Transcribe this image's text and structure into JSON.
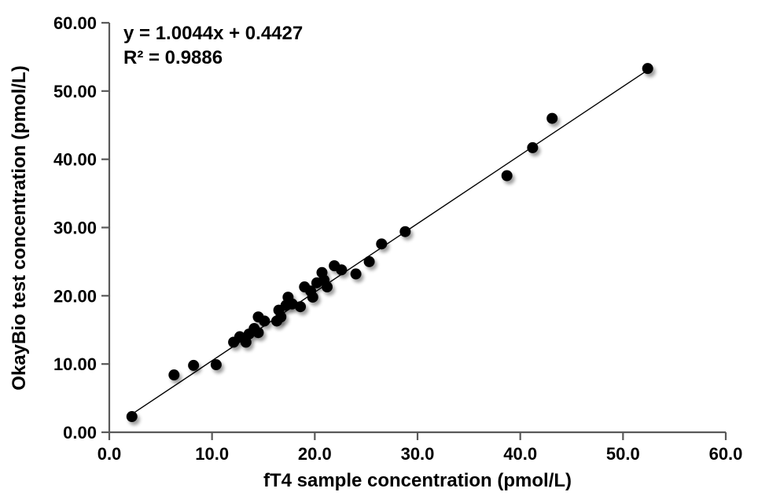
{
  "chart_data": {
    "type": "scatter",
    "title": "",
    "xlabel": "fT4 sample concentration (pmol/L)",
    "ylabel": "OkayBio test concentration (pmol/L)",
    "xlim": [
      0,
      60
    ],
    "ylim": [
      0,
      60
    ],
    "grid": false,
    "legend": false,
    "background_color": "#ffffff",
    "axis_color": "#595959",
    "text_color": "#000000",
    "xticks": [
      {
        "value": 0,
        "label": "0.0"
      },
      {
        "value": 10,
        "label": "10.0"
      },
      {
        "value": 20,
        "label": "20.0"
      },
      {
        "value": 30,
        "label": "30.0"
      },
      {
        "value": 40,
        "label": "40.0"
      },
      {
        "value": 50,
        "label": "50.0"
      },
      {
        "value": 60,
        "label": "60.0"
      }
    ],
    "yticks": [
      {
        "value": 0,
        "label": "0.00"
      },
      {
        "value": 10,
        "label": "10.00"
      },
      {
        "value": 20,
        "label": "20.00"
      },
      {
        "value": 30,
        "label": "30.00"
      },
      {
        "value": 40,
        "label": "40.00"
      },
      {
        "value": 50,
        "label": "50.00"
      },
      {
        "value": 60,
        "label": "60.00"
      }
    ],
    "annotation": {
      "equation": "y = 1.0044x + 0.4427",
      "r_squared": "R² = 0.9886"
    },
    "trendline": {
      "slope": 1.0044,
      "intercept": 0.4427,
      "r2": 0.9886,
      "x_start": 2.2,
      "x_end": 52.4,
      "color": "#000000",
      "width": 1.4
    },
    "marker": {
      "shape": "circle",
      "radius": 7,
      "color": "#000000",
      "shadow": true
    },
    "points": [
      [
        2.2,
        2.3
      ],
      [
        6.3,
        8.4
      ],
      [
        8.2,
        9.8
      ],
      [
        10.4,
        9.9
      ],
      [
        12.1,
        13.2
      ],
      [
        12.7,
        14.0
      ],
      [
        13.3,
        13.2
      ],
      [
        13.6,
        14.4
      ],
      [
        14.1,
        15.2
      ],
      [
        14.5,
        14.6
      ],
      [
        14.5,
        16.9
      ],
      [
        15.1,
        16.3
      ],
      [
        16.3,
        16.3
      ],
      [
        16.5,
        17.9
      ],
      [
        16.7,
        16.9
      ],
      [
        17.2,
        18.6
      ],
      [
        17.4,
        19.8
      ],
      [
        17.8,
        18.8
      ],
      [
        18.6,
        18.4
      ],
      [
        19.0,
        21.3
      ],
      [
        19.6,
        20.7
      ],
      [
        19.8,
        19.8
      ],
      [
        20.2,
        21.9
      ],
      [
        20.7,
        23.4
      ],
      [
        20.9,
        22.3
      ],
      [
        21.2,
        21.3
      ],
      [
        21.9,
        24.4
      ],
      [
        22.6,
        23.8
      ],
      [
        24.0,
        23.2
      ],
      [
        25.3,
        25.0
      ],
      [
        26.5,
        27.6
      ],
      [
        28.8,
        29.4
      ],
      [
        38.7,
        37.6
      ],
      [
        41.2,
        41.7
      ],
      [
        43.1,
        46.0
      ],
      [
        52.4,
        53.3
      ]
    ]
  }
}
